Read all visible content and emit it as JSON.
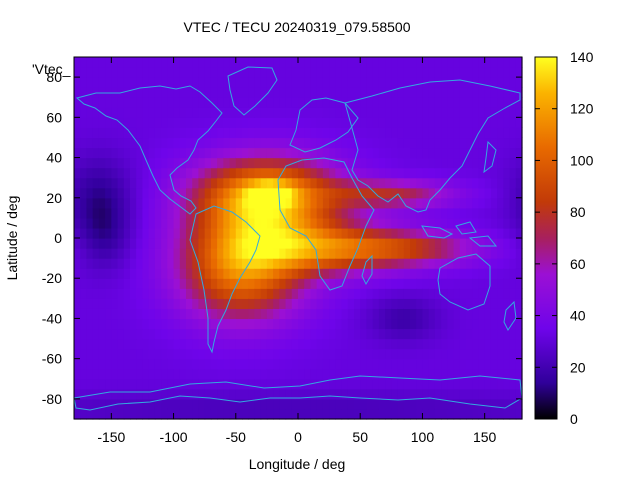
{
  "chart_data": {
    "type": "heatmap",
    "title": "VTEC / TECU 20240319_079.58500",
    "xlabel": "Longitude / deg",
    "ylabel": "Latitude / deg",
    "key_label": "'Vtec_",
    "xlim": [
      -180,
      180
    ],
    "ylim": [
      -90,
      90
    ],
    "x_ticks": [
      -150,
      -100,
      -50,
      0,
      50,
      100,
      150
    ],
    "y_ticks": [
      -80,
      -60,
      -40,
      -20,
      0,
      20,
      40,
      60,
      80
    ],
    "colorbar": {
      "min": 0,
      "max": 140,
      "ticks": [
        0,
        20,
        40,
        60,
        80,
        100,
        120,
        140
      ]
    },
    "background_level": 32,
    "features": [
      {
        "name": "crest-north-atlantic",
        "lon": -25,
        "lat": 20,
        "sigma_lon": 40,
        "sigma_lat": 14,
        "value": 95
      },
      {
        "name": "crest-south-america",
        "lon": -45,
        "lat": -15,
        "sigma_lon": 35,
        "sigma_lat": 18,
        "value": 78
      },
      {
        "name": "crest-africa",
        "lon": 20,
        "lat": -5,
        "sigma_lon": 45,
        "sigma_lat": 9,
        "value": 60
      },
      {
        "name": "band-indian-ocean",
        "lon": 90,
        "lat": -5,
        "sigma_lon": 40,
        "sigma_lat": 6,
        "value": 40
      },
      {
        "name": "band-arabia-india",
        "lon": 75,
        "lat": 22,
        "sigma_lon": 35,
        "sigma_lat": 5,
        "value": 42
      },
      {
        "name": "peak-sahara",
        "lon": -22,
        "lat": 22,
        "sigma_lon": 12,
        "sigma_lat": 4,
        "value": 35
      },
      {
        "name": "low-north-pacific",
        "lon": -160,
        "lat": 20,
        "sigma_lon": 20,
        "sigma_lat": 15,
        "value": -18
      },
      {
        "name": "low-south-pacific",
        "lon": -155,
        "lat": 0,
        "sigma_lon": 15,
        "sigma_lat": 12,
        "value": -12
      },
      {
        "name": "low-south-indian",
        "lon": 85,
        "lat": -40,
        "sigma_lon": 20,
        "sigma_lat": 8,
        "value": -14
      },
      {
        "name": "low-antarctica",
        "lon": 0,
        "lat": -85,
        "sigma_lon": 200,
        "sigma_lat": 6,
        "value": -10
      }
    ],
    "colors": {
      "frame": "#000000",
      "coastline": "#33a9e0"
    }
  }
}
